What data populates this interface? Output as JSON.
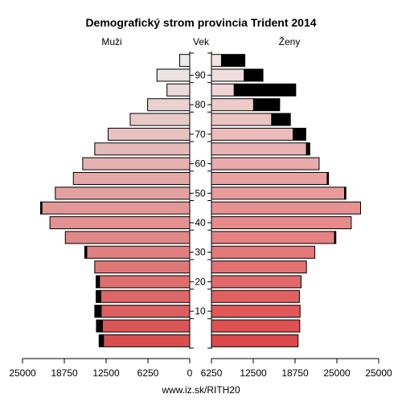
{
  "chart_data": {
    "type": "bar",
    "title": "Demografický strom provincia Trident 2014",
    "left_label": "Muži",
    "center_label": "Vek",
    "right_label": "Ženy",
    "source": "www.iz.sk/RITH20",
    "age_ticks": [
      "10",
      "20",
      "30",
      "40",
      "50",
      "60",
      "70",
      "80",
      "90"
    ],
    "x_ticks": [
      "25000",
      "18750",
      "12500",
      "6250",
      "0",
      "6250",
      "12500",
      "18750",
      "25000"
    ],
    "xlim": [
      0,
      25000
    ],
    "groups": [
      {
        "age": "0-4",
        "men": 12900,
        "men_excess": 650,
        "women": 12950,
        "women_excess": 0
      },
      {
        "age": "5-9",
        "men": 13050,
        "men_excess": 900,
        "women": 13200,
        "women_excess": 0
      },
      {
        "age": "10-14",
        "men": 13250,
        "men_excess": 950,
        "women": 13250,
        "women_excess": 0
      },
      {
        "age": "15-19",
        "men": 13300,
        "men_excess": 700,
        "women": 13150,
        "women_excess": 0
      },
      {
        "age": "20-24",
        "men": 13500,
        "men_excess": 500,
        "women": 13400,
        "women_excess": 0
      },
      {
        "age": "25-29",
        "men": 14200,
        "men_excess": 0,
        "women": 14200,
        "women_excess": 0
      },
      {
        "age": "30-34",
        "men": 15400,
        "men_excess": 300,
        "women": 15450,
        "women_excess": 0
      },
      {
        "age": "35-39",
        "men": 18600,
        "men_excess": 0,
        "women": 18400,
        "women_excess": 200
      },
      {
        "age": "40-44",
        "men": 20900,
        "men_excess": 0,
        "women": 20900,
        "women_excess": 0
      },
      {
        "age": "45-49",
        "men": 22100,
        "men_excess": 200,
        "women": 22300,
        "women_excess": 0
      },
      {
        "age": "50-54",
        "men": 20100,
        "men_excess": 0,
        "women": 19900,
        "women_excess": 200
      },
      {
        "age": "55-59",
        "men": 17400,
        "men_excess": 0,
        "women": 17300,
        "women_excess": 200
      },
      {
        "age": "60-65",
        "men": 16000,
        "men_excess": 0,
        "women": 16100,
        "women_excess": 0
      },
      {
        "age": "65-69",
        "men": 14200,
        "men_excess": 0,
        "women": 14200,
        "women_excess": 500
      },
      {
        "age": "70-74",
        "men": 12200,
        "men_excess": 0,
        "women": 12200,
        "women_excess": 1900
      },
      {
        "age": "75-79",
        "men": 8900,
        "men_excess": 0,
        "women": 9000,
        "women_excess": 2800
      },
      {
        "age": "80-84",
        "men": 6300,
        "men_excess": 0,
        "women": 6300,
        "women_excess": 3900
      },
      {
        "age": "85-89",
        "men": 3400,
        "men_excess": 0,
        "women": 3400,
        "women_excess": 9200
      },
      {
        "age": "90-94",
        "men": 4900,
        "men_excess": 0,
        "women": 4900,
        "women_excess": 2800
      },
      {
        "age": "95+",
        "men": 1500,
        "men_excess": 0,
        "women": 1500,
        "women_excess": 3500
      }
    ]
  }
}
